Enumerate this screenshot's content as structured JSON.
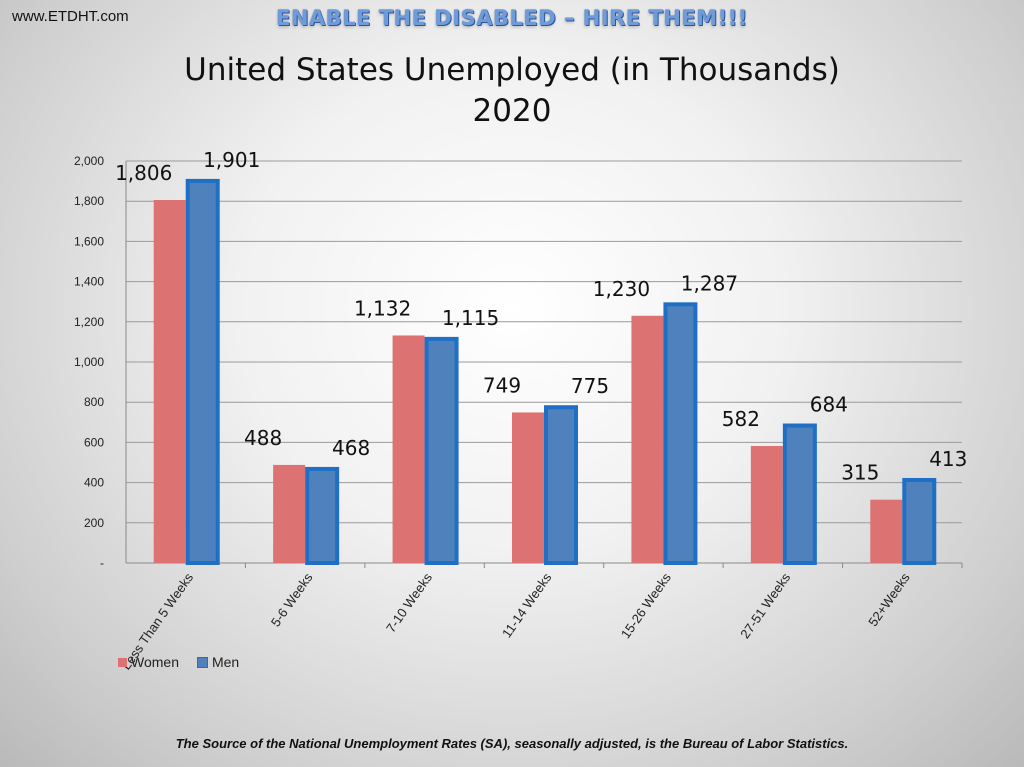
{
  "header": {
    "site": "www.ETDHT.com",
    "banner": "ENABLE THE DISABLED – HIRE THEM!!!"
  },
  "footer": {
    "source": "The Source of the National Unemployment Rates (SA), seasonally adjusted, is the Bureau of Labor Statistics."
  },
  "chart_data": {
    "type": "bar",
    "title": "United States Unemployed (in Thousands)",
    "subtitle": "2020",
    "categories": [
      "Less Than 5 Weeks",
      "5-6 Weeks",
      "7-10 Weeks",
      "11-14 Weeks",
      "15-26 Weeks",
      "27-51 Weeks",
      "52+Weeks"
    ],
    "series": [
      {
        "name": "Women",
        "values": [
          1806,
          488,
          1132,
          749,
          1230,
          582,
          315
        ],
        "color": "#dc7272"
      },
      {
        "name": "Men",
        "values": [
          1901,
          468,
          1115,
          775,
          1287,
          684,
          413
        ],
        "color": "#4f81bd"
      }
    ],
    "data_labels": {
      "Women": [
        "1,806",
        "488",
        "1,132",
        "749",
        "1,230",
        "582",
        "315"
      ],
      "Men": [
        "1,901",
        "468",
        "1,115",
        "775",
        "1,287",
        "684",
        "413"
      ]
    },
    "y_ticks": [
      "-",
      "200",
      "400",
      "600",
      "800",
      "1,000",
      "1,200",
      "1,400",
      "1,600",
      "1,800",
      "2,000"
    ],
    "ylim": [
      0,
      2000
    ],
    "grid": true,
    "legend_position": "bottom-left",
    "men_border_color": "#1f6fc4"
  }
}
